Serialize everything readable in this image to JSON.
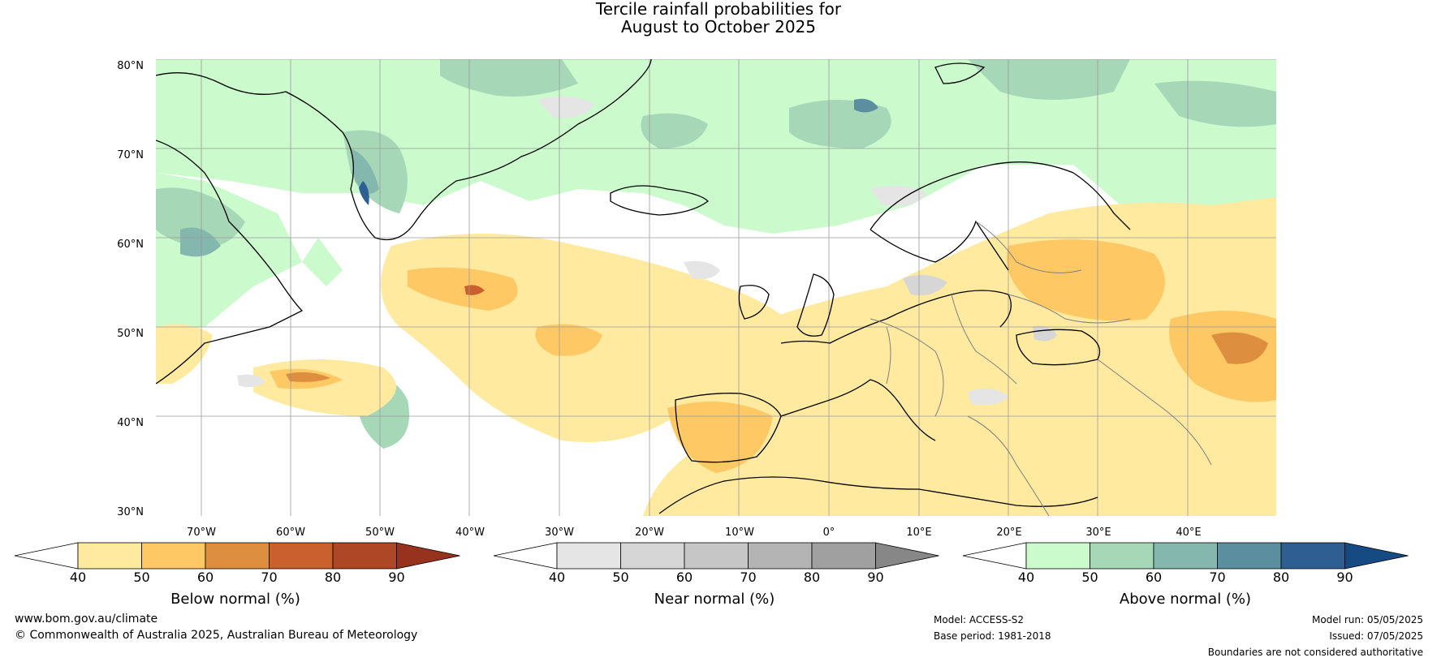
{
  "title_line1": "Tercile rainfall probabilities for",
  "title_line2": "August to October 2025",
  "lat_labels": [
    "80°N",
    "70°N",
    "60°N",
    "50°N",
    "40°N",
    "30°N"
  ],
  "lon_labels": [
    "70°W",
    "60°W",
    "50°W",
    "40°W",
    "30°W",
    "20°W",
    "10°W",
    "0°",
    "10°E",
    "20°E",
    "30°E",
    "40°E"
  ],
  "colorbars": [
    {
      "title": "Below normal (%)",
      "ticks": [
        "40",
        "50",
        "60",
        "70",
        "80",
        "90"
      ],
      "colors": [
        "#ffffff",
        "#ffeaa0",
        "#fec965",
        "#de8e3f",
        "#c9602d",
        "#ad4726",
        "#97321f"
      ]
    },
    {
      "title": "Near normal (%)",
      "ticks": [
        "40",
        "50",
        "60",
        "70",
        "80",
        "90"
      ],
      "colors": [
        "#ffffff",
        "#e5e5e5",
        "#d6d6d6",
        "#c6c6c6",
        "#b4b4b4",
        "#a0a0a0",
        "#878787"
      ]
    },
    {
      "title": "Above normal (%)",
      "ticks": [
        "40",
        "50",
        "60",
        "70",
        "80",
        "90"
      ],
      "colors": [
        "#ffffff",
        "#cbfbcd",
        "#a6d8b8",
        "#84b7ad",
        "#5b8f9f",
        "#2f5f92",
        "#154b82"
      ]
    }
  ],
  "footer": {
    "website": "www.bom.gov.au/climate",
    "copyright": "© Commonwealth of Australia 2025, Australian Bureau of Meteorology",
    "model": "Model: ACCESS-S2",
    "base_period": "Base period: 1981-2018",
    "model_run": "Model run: 05/05/2025",
    "issued": "Issued: 07/05/2025",
    "disclaimer": "Boundaries are not considered authoritative"
  }
}
